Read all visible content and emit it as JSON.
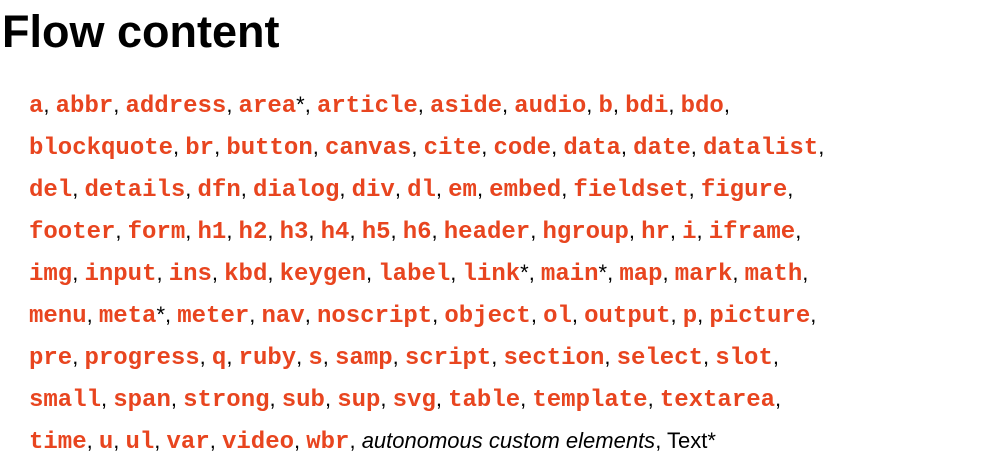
{
  "title": "Flow content",
  "separator": ", ",
  "star": "*",
  "lines": [
    [
      {
        "t": "a"
      },
      {
        "t": "abbr"
      },
      {
        "t": "address"
      },
      {
        "t": "area",
        "star": true
      },
      {
        "t": "article"
      },
      {
        "t": "aside"
      },
      {
        "t": "audio"
      },
      {
        "t": "b"
      },
      {
        "t": "bdi"
      },
      {
        "t": "bdo"
      }
    ],
    [
      {
        "t": "blockquote"
      },
      {
        "t": "br"
      },
      {
        "t": "button"
      },
      {
        "t": "canvas"
      },
      {
        "t": "cite"
      },
      {
        "t": "code"
      },
      {
        "t": "data"
      },
      {
        "t": "date"
      },
      {
        "t": "datalist"
      }
    ],
    [
      {
        "t": "del"
      },
      {
        "t": "details"
      },
      {
        "t": "dfn"
      },
      {
        "t": "dialog"
      },
      {
        "t": "div"
      },
      {
        "t": "dl"
      },
      {
        "t": "em"
      },
      {
        "t": "embed"
      },
      {
        "t": "fieldset"
      },
      {
        "t": "figure"
      }
    ],
    [
      {
        "t": "footer"
      },
      {
        "t": "form"
      },
      {
        "t": "h1"
      },
      {
        "t": "h2"
      },
      {
        "t": "h3"
      },
      {
        "t": "h4"
      },
      {
        "t": "h5"
      },
      {
        "t": "h6"
      },
      {
        "t": "header"
      },
      {
        "t": "hgroup"
      },
      {
        "t": "hr"
      },
      {
        "t": "i"
      },
      {
        "t": "iframe"
      }
    ],
    [
      {
        "t": "img"
      },
      {
        "t": "input"
      },
      {
        "t": "ins"
      },
      {
        "t": "kbd"
      },
      {
        "t": "keygen"
      },
      {
        "t": "label"
      },
      {
        "t": "link",
        "star": true
      },
      {
        "t": "main",
        "star": true
      },
      {
        "t": "map"
      },
      {
        "t": "mark"
      },
      {
        "t": "math"
      }
    ],
    [
      {
        "t": "menu"
      },
      {
        "t": "meta",
        "star": true
      },
      {
        "t": "meter"
      },
      {
        "t": "nav"
      },
      {
        "t": "noscript"
      },
      {
        "t": "object"
      },
      {
        "t": "ol"
      },
      {
        "t": "output"
      },
      {
        "t": "p"
      },
      {
        "t": "picture"
      }
    ],
    [
      {
        "t": "pre"
      },
      {
        "t": "progress"
      },
      {
        "t": "q"
      },
      {
        "t": "ruby"
      },
      {
        "t": "s"
      },
      {
        "t": "samp"
      },
      {
        "t": "script"
      },
      {
        "t": "section"
      },
      {
        "t": "select"
      },
      {
        "t": "slot"
      }
    ],
    [
      {
        "t": "small"
      },
      {
        "t": "span"
      },
      {
        "t": "strong"
      },
      {
        "t": "sub"
      },
      {
        "t": "sup"
      },
      {
        "t": "svg"
      },
      {
        "t": "table"
      },
      {
        "t": "template"
      },
      {
        "t": "textarea"
      }
    ],
    [
      {
        "t": "time"
      },
      {
        "t": "u"
      },
      {
        "t": "ul"
      },
      {
        "t": "var"
      },
      {
        "t": "video"
      },
      {
        "t": "wbr"
      },
      {
        "t": "autonomous custom elements",
        "style": "italic"
      },
      {
        "t": "Text",
        "style": "plain",
        "star": true,
        "last": true
      }
    ]
  ]
}
